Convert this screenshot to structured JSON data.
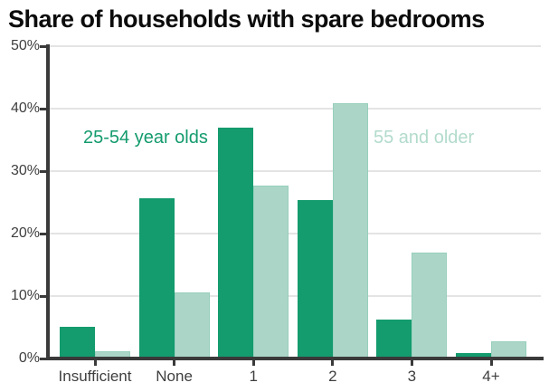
{
  "title": {
    "text": "Share of households with spare bedrooms"
  },
  "legend": {
    "series1_label": "25-54 year olds",
    "series2_label": "55 and older",
    "series1_color": "#149b6e",
    "series2_color": "#b2dbcb"
  },
  "chart_data": {
    "type": "bar",
    "title": "Share of households with spare bedrooms",
    "categories": [
      "Insufficient",
      "None",
      "1",
      "2",
      "3",
      "4+"
    ],
    "series": [
      {
        "name": "25-54 year olds",
        "color": "#149b6e",
        "values": [
          5.1,
          25.6,
          36.9,
          25.4,
          6.3,
          0.8
        ]
      },
      {
        "name": "55 and older",
        "color": "#abd6c7",
        "values": [
          1.2,
          10.6,
          27.7,
          40.8,
          17.0,
          2.7
        ]
      }
    ],
    "xlabel": "",
    "ylabel": "",
    "ylim": [
      0,
      50
    ],
    "yticks": [
      0,
      10,
      20,
      30,
      40,
      50
    ],
    "ytick_labels": [
      "0%",
      "10%",
      "20%",
      "30%",
      "40%",
      "50%"
    ],
    "grid": true,
    "legend_position": "inline text annotations inside plot area",
    "colors": {
      "axis": "#3a3a3a",
      "grid": "#e4e4e4",
      "tick_label": "#3f3f3f",
      "title": "#0c0c0c",
      "background": "#ffffff"
    }
  }
}
